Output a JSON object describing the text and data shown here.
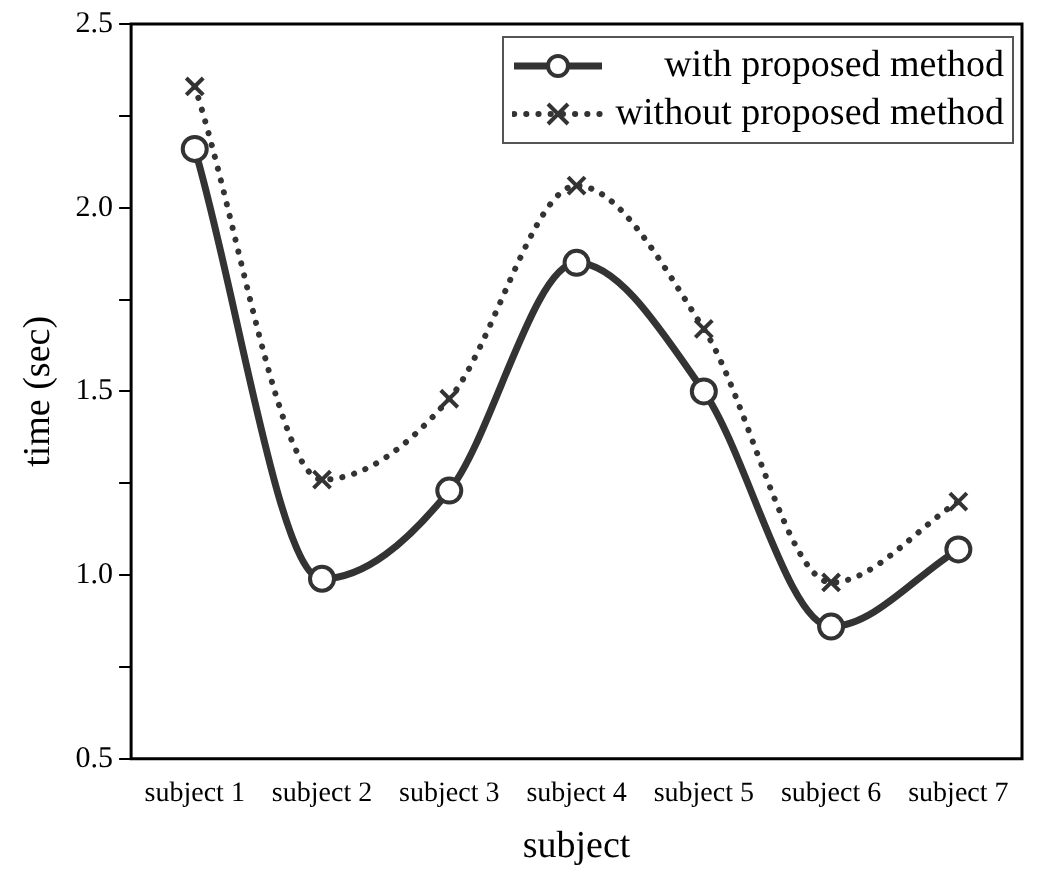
{
  "chart_data": {
    "type": "line",
    "xlabel": "subject",
    "ylabel": "time (sec)",
    "categories": [
      "subject 1",
      "subject 2",
      "subject 3",
      "subject 4",
      "subject 5",
      "subject 6",
      "subject 7"
    ],
    "series": [
      {
        "name": "with proposed method",
        "color": "#333333",
        "values": [
          2.16,
          0.99,
          1.23,
          1.85,
          1.5,
          0.86,
          1.07
        ],
        "marker": "circle",
        "line_style": "solid"
      },
      {
        "name": "without proposed method",
        "color": "#333333",
        "values": [
          2.33,
          1.26,
          1.48,
          2.06,
          1.67,
          0.98,
          1.2
        ],
        "marker": "cross",
        "line_style": "dotted"
      }
    ],
    "ylim": [
      0.5,
      2.5
    ],
    "yticks": [
      0.5,
      {
        "value": 0.75,
        "label": null
      },
      {
        "value": 1,
        "label": "1.0"
      },
      {
        "value": 1.25,
        "label": null
      },
      1.5,
      {
        "value": 1.75,
        "label": null
      },
      {
        "value": 2,
        "label": "2.0"
      },
      {
        "value": 2.25,
        "label": null
      },
      2.5
    ],
    "grid": false,
    "legend": "top right"
  }
}
